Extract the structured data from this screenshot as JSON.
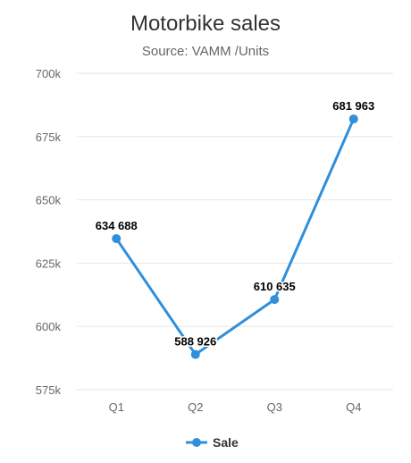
{
  "chart_data": {
    "type": "line",
    "title": "Motorbike sales",
    "subtitle": "Source: VAMM /Units",
    "categories": [
      "Q1",
      "Q2",
      "Q3",
      "Q4"
    ],
    "series": [
      {
        "name": "Sale",
        "values": [
          634688,
          588926,
          610635,
          681963
        ],
        "data_labels": [
          "634 688",
          "588 926",
          "610 635",
          "681 963"
        ],
        "color": "#2f8fdb"
      }
    ],
    "ylim": [
      575000,
      700000
    ],
    "yticks": [
      575000,
      600000,
      625000,
      650000,
      675000,
      700000
    ],
    "ytick_labels": [
      "575k",
      "600k",
      "625k",
      "650k",
      "675k",
      "700k"
    ],
    "grid": true,
    "legend": "bottom-center",
    "xlabel": "",
    "ylabel": ""
  }
}
